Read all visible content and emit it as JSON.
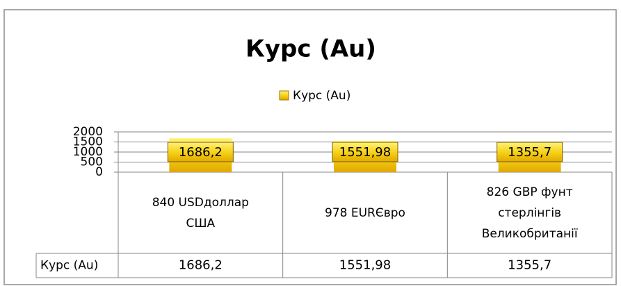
{
  "chart_data": {
    "type": "bar",
    "title": "Курс (Au)",
    "series": [
      {
        "name": "Курс (Au)",
        "color": "#f5c400",
        "values": [
          1686.2,
          1551.98,
          1355.7
        ],
        "value_labels": [
          "1686,2",
          "1551,98",
          "1355,7"
        ]
      }
    ],
    "categories": [
      "840 USDдоллар США",
      "978 EURЄвро",
      "826 GBP фунт стерлінгів Великобританії"
    ],
    "ylim": [
      0,
      2000
    ],
    "yticks": [
      0,
      500,
      1000,
      1500,
      2000
    ],
    "grid": true,
    "legend": "top",
    "data_table": true
  }
}
